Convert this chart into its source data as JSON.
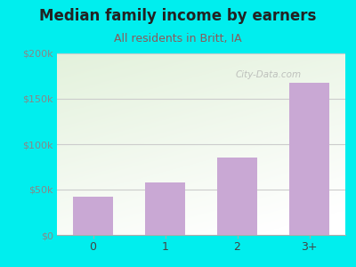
{
  "title": "Median family income by earners",
  "subtitle": "All residents in Britt, IA",
  "categories": [
    "0",
    "1",
    "2",
    "3+"
  ],
  "values": [
    42000,
    58000,
    85000,
    168000
  ],
  "bar_color": "#C9A8D4",
  "title_fontsize": 12,
  "subtitle_fontsize": 9,
  "title_color": "#222222",
  "subtitle_color": "#8B5A5A",
  "background_color": "#00EEEE",
  "ylim": [
    0,
    200000
  ],
  "yticks": [
    0,
    50000,
    100000,
    150000,
    200000
  ],
  "ytick_labels": [
    "$0",
    "$50k",
    "$100k",
    "$150k",
    "$200k"
  ],
  "watermark": "City-Data.com",
  "grid_color": "#cccccc",
  "tick_label_color": "#888888"
}
